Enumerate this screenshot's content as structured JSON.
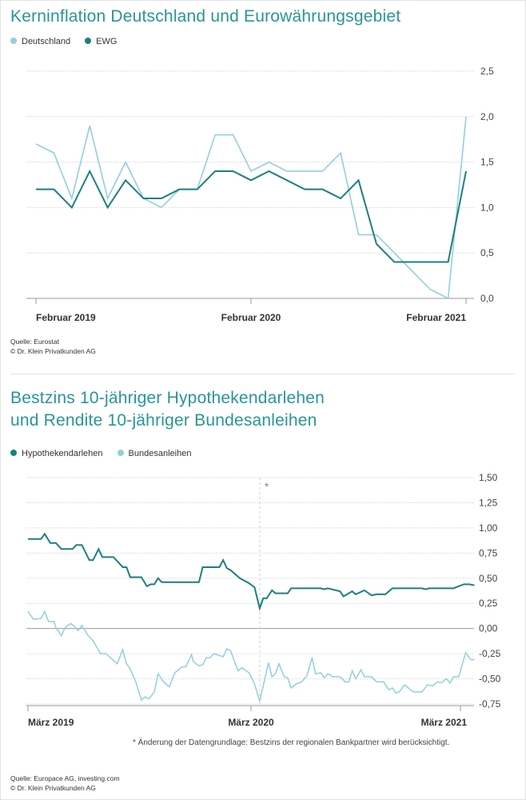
{
  "colors": {
    "title": "#2a9595",
    "dark": "#1e7f80",
    "light": "#92cfe0",
    "grid": "#e0e0e0",
    "axis": "#999999"
  },
  "chart_data": [
    {
      "type": "line",
      "title": "Kerninflation Deutschland und Eurowährungsgebiet",
      "legend_position": "top-left",
      "x_tick_labels": [
        "Februar 2019",
        "Februar 2020",
        "Februar 2021"
      ],
      "y_tick_labels": [
        "0,0",
        "0,5",
        "1,0",
        "1,5",
        "2,0",
        "2,5"
      ],
      "y_ticks": [
        0,
        0.5,
        1,
        1.5,
        2,
        2.5
      ],
      "ylim": [
        0,
        2.5
      ],
      "x_unit": "months since Februar 2019",
      "x": [
        0,
        1,
        2,
        3,
        4,
        5,
        6,
        7,
        8,
        9,
        10,
        11,
        12,
        13,
        14,
        15,
        16,
        17,
        18,
        19,
        20,
        21,
        22,
        23,
        24
      ],
      "series": [
        {
          "name": "Deutschland",
          "color": "light",
          "values": [
            1.7,
            1.6,
            1.1,
            1.9,
            1.1,
            1.5,
            1.1,
            1.0,
            1.2,
            1.2,
            1.8,
            1.8,
            1.4,
            1.5,
            1.4,
            1.4,
            1.4,
            1.6,
            0.7,
            0.7,
            0.5,
            0.3,
            0.1,
            0.0,
            2.0
          ]
        },
        {
          "name": "EWG",
          "color": "dark",
          "values": [
            1.2,
            1.2,
            1.0,
            1.4,
            1.0,
            1.3,
            1.1,
            1.1,
            1.2,
            1.2,
            1.4,
            1.4,
            1.3,
            1.4,
            1.3,
            1.2,
            1.2,
            1.1,
            1.3,
            0.6,
            0.4,
            0.4,
            0.4,
            0.4,
            1.4
          ]
        }
      ],
      "source": [
        "Quelle: Eurostat",
        "© Dr. Klein Privatkunden AG"
      ]
    },
    {
      "type": "line",
      "title": [
        "Bestzins 10-jähriger Hypothekendarlehen",
        "und Rendite 10-jähriger Bundesanleihen"
      ],
      "legend_position": "top-left",
      "x_tick_labels": [
        "März 2019",
        "März 2020",
        "März 2021"
      ],
      "y_tick_labels": [
        "-0,75",
        "-0,50",
        "-0,25",
        "0,00",
        "0,25",
        "0,50",
        "0,75",
        "1,00",
        "1,25",
        "1,50"
      ],
      "y_ticks": [
        -0.75,
        -0.5,
        -0.25,
        0,
        0.25,
        0.5,
        0.75,
        1,
        1.25,
        1.5
      ],
      "ylim": [
        -0.75,
        1.5
      ],
      "x_unit": "months since März 2019",
      "marker_month": 12.5,
      "marker_label": "*",
      "footnote": "*  Änderung der Datengrundlage: Bestzins der regionalen Bankpartner wird berücksichtigt.",
      "series": [
        {
          "name": "Hypothekendarlehen",
          "color": "dark",
          "points": [
            [
              0,
              0.89
            ],
            [
              0.7,
              0.89
            ],
            [
              0.9,
              0.94
            ],
            [
              1.2,
              0.85
            ],
            [
              1.5,
              0.85
            ],
            [
              1.8,
              0.79
            ],
            [
              2.4,
              0.79
            ],
            [
              2.6,
              0.83
            ],
            [
              2.9,
              0.83
            ],
            [
              3.3,
              0.68
            ],
            [
              3.5,
              0.68
            ],
            [
              3.8,
              0.79
            ],
            [
              4.0,
              0.71
            ],
            [
              4.6,
              0.71
            ],
            [
              5.1,
              0.61
            ],
            [
              5.3,
              0.61
            ],
            [
              5.5,
              0.51
            ],
            [
              6.1,
              0.51
            ],
            [
              6.4,
              0.42
            ],
            [
              6.6,
              0.44
            ],
            [
              6.8,
              0.44
            ],
            [
              7.0,
              0.5
            ],
            [
              7.2,
              0.46
            ],
            [
              9.2,
              0.46
            ],
            [
              9.4,
              0.61
            ],
            [
              10.3,
              0.61
            ],
            [
              10.5,
              0.68
            ],
            [
              10.7,
              0.6
            ],
            [
              10.9,
              0.58
            ],
            [
              11.4,
              0.5
            ],
            [
              11.9,
              0.45
            ],
            [
              12.2,
              0.41
            ],
            [
              12.5,
              0.2
            ],
            [
              12.7,
              0.3
            ],
            [
              12.9,
              0.3
            ],
            [
              13.2,
              0.38
            ],
            [
              13.4,
              0.35
            ],
            [
              14.1,
              0.35
            ],
            [
              14.3,
              0.4
            ],
            [
              16.0,
              0.4
            ],
            [
              16.2,
              0.39
            ],
            [
              16.4,
              0.4
            ],
            [
              17.1,
              0.37
            ],
            [
              17.3,
              0.32
            ],
            [
              17.8,
              0.37
            ],
            [
              18.0,
              0.34
            ],
            [
              18.5,
              0.38
            ],
            [
              18.9,
              0.33
            ],
            [
              19.2,
              0.34
            ],
            [
              19.7,
              0.34
            ],
            [
              20.1,
              0.4
            ],
            [
              21.8,
              0.4
            ],
            [
              22.0,
              0.39
            ],
            [
              22.2,
              0.4
            ],
            [
              23.6,
              0.4
            ],
            [
              24.2,
              0.44
            ],
            [
              24.5,
              0.44
            ],
            [
              24.8,
              0.43
            ]
          ]
        },
        {
          "name": "Bundesanleihen",
          "color": "light",
          "points": [
            [
              0,
              0.17
            ],
            [
              0.3,
              0.09
            ],
            [
              0.7,
              0.1
            ],
            [
              0.9,
              0.17
            ],
            [
              1.1,
              0.07
            ],
            [
              1.4,
              0.07
            ],
            [
              1.5,
              0.01
            ],
            [
              1.8,
              -0.07
            ],
            [
              2.0,
              0.01
            ],
            [
              2.3,
              0.05
            ],
            [
              2.5,
              0.02
            ],
            [
              2.7,
              -0.02
            ],
            [
              2.9,
              0.03
            ],
            [
              3.2,
              -0.06
            ],
            [
              3.5,
              -0.12
            ],
            [
              3.9,
              -0.25
            ],
            [
              4.2,
              -0.25
            ],
            [
              4.8,
              -0.35
            ],
            [
              5.1,
              -0.21
            ],
            [
              5.3,
              -0.35
            ],
            [
              5.5,
              -0.4
            ],
            [
              5.8,
              -0.53
            ],
            [
              6.1,
              -0.71
            ],
            [
              6.3,
              -0.68
            ],
            [
              6.5,
              -0.7
            ],
            [
              6.8,
              -0.63
            ],
            [
              7.0,
              -0.45
            ],
            [
              7.3,
              -0.53
            ],
            [
              7.6,
              -0.58
            ],
            [
              7.9,
              -0.44
            ],
            [
              8.3,
              -0.38
            ],
            [
              8.5,
              -0.38
            ],
            [
              8.8,
              -0.26
            ],
            [
              8.9,
              -0.33
            ],
            [
              9.2,
              -0.37
            ],
            [
              9.4,
              -0.36
            ],
            [
              9.6,
              -0.29
            ],
            [
              9.8,
              -0.29
            ],
            [
              10.0,
              -0.25
            ],
            [
              10.5,
              -0.28
            ],
            [
              10.7,
              -0.2
            ],
            [
              10.9,
              -0.22
            ],
            [
              11.3,
              -0.42
            ],
            [
              11.5,
              -0.39
            ],
            [
              11.9,
              -0.44
            ],
            [
              12.2,
              -0.55
            ],
            [
              12.5,
              -0.72
            ],
            [
              13.0,
              -0.34
            ],
            [
              13.2,
              -0.48
            ],
            [
              13.4,
              -0.45
            ],
            [
              13.6,
              -0.35
            ],
            [
              13.9,
              -0.48
            ],
            [
              14.1,
              -0.49
            ],
            [
              14.3,
              -0.59
            ],
            [
              14.6,
              -0.55
            ],
            [
              14.9,
              -0.53
            ],
            [
              15.2,
              -0.47
            ],
            [
              15.5,
              -0.29
            ],
            [
              15.7,
              -0.45
            ],
            [
              16.0,
              -0.44
            ],
            [
              16.2,
              -0.49
            ],
            [
              16.4,
              -0.45
            ],
            [
              16.7,
              -0.48
            ],
            [
              17.1,
              -0.48
            ],
            [
              17.4,
              -0.53
            ],
            [
              17.6,
              -0.53
            ],
            [
              17.8,
              -0.42
            ],
            [
              18.0,
              -0.5
            ],
            [
              18.3,
              -0.41
            ],
            [
              18.5,
              -0.48
            ],
            [
              18.9,
              -0.48
            ],
            [
              19.2,
              -0.53
            ],
            [
              19.6,
              -0.53
            ],
            [
              19.9,
              -0.61
            ],
            [
              20.1,
              -0.59
            ],
            [
              20.3,
              -0.64
            ],
            [
              20.5,
              -0.63
            ],
            [
              20.8,
              -0.56
            ],
            [
              21.3,
              -0.63
            ],
            [
              21.8,
              -0.63
            ],
            [
              22.1,
              -0.56
            ],
            [
              22.4,
              -0.57
            ],
            [
              22.7,
              -0.53
            ],
            [
              22.9,
              -0.54
            ],
            [
              23.2,
              -0.5
            ],
            [
              23.4,
              -0.54
            ],
            [
              23.6,
              -0.48
            ],
            [
              23.9,
              -0.48
            ],
            [
              24.3,
              -0.24
            ],
            [
              24.6,
              -0.31
            ],
            [
              24.8,
              -0.31
            ]
          ]
        }
      ],
      "source": [
        "Quelle: Europace AG, investing.com",
        "© Dr. Klein Privatkunden AG"
      ]
    }
  ]
}
